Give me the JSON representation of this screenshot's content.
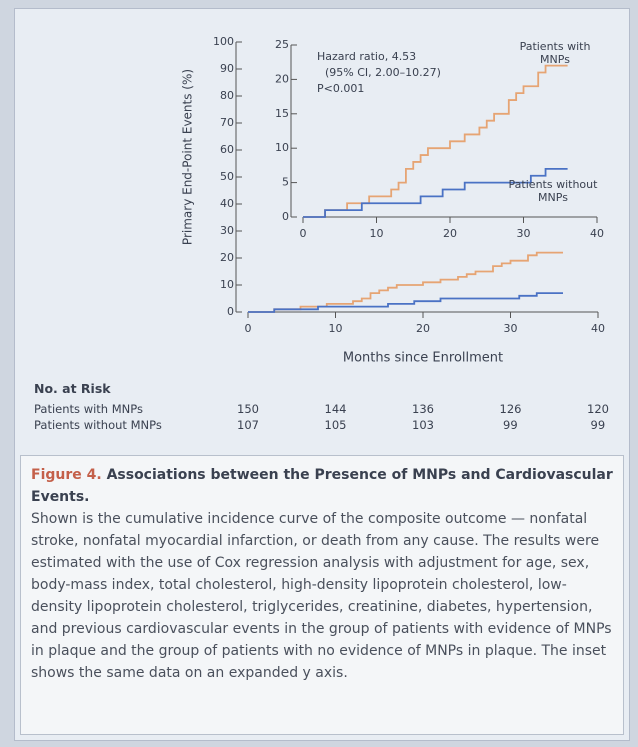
{
  "chart_data": [
    {
      "type": "line",
      "step": true,
      "ylabel": "Primary End-Point Events (%)",
      "xlabel": "Months since Enrollment",
      "xlim": [
        0,
        40
      ],
      "xticks": [
        0,
        10,
        20,
        30,
        40
      ],
      "ylim": [
        0,
        100
      ],
      "yticks": [
        0,
        10,
        20,
        30,
        40,
        50,
        60,
        70,
        80,
        90,
        100
      ],
      "series": [
        {
          "color": "#e6a473",
          "x": [
            0,
            3,
            3,
            6,
            6,
            9,
            9,
            12,
            12,
            13,
            13,
            14,
            14,
            15,
            15,
            16,
            16,
            17,
            17,
            20,
            20,
            22,
            22,
            24,
            24,
            25,
            25,
            26,
            26,
            28,
            28,
            29,
            29,
            30,
            30,
            32,
            32,
            33,
            33,
            36
          ],
          "values": [
            0,
            0,
            1,
            1,
            2,
            2,
            3,
            3,
            4,
            4,
            5,
            5,
            7,
            7,
            8,
            8,
            9,
            9,
            10,
            10,
            11,
            11,
            12,
            12,
            13,
            13,
            14,
            14,
            15,
            15,
            17,
            17,
            18,
            18,
            19,
            19,
            21,
            21,
            22,
            22
          ]
        },
        {
          "color": "#4a72c4",
          "x": [
            0,
            3,
            3,
            8,
            8,
            16,
            16,
            19,
            19,
            22,
            22,
            31,
            31,
            33,
            33,
            36
          ],
          "values": [
            0,
            0,
            1,
            1,
            2,
            2,
            3,
            3,
            4,
            4,
            5,
            5,
            6,
            6,
            7,
            7
          ]
        }
      ]
    },
    {
      "type": "line",
      "step": true,
      "annotation": [
        "Hazard ratio, 4.53",
        "(95% CI, 2.00–10.27)",
        "P<0.001"
      ],
      "xlim": [
        0,
        40
      ],
      "xticks": [
        0,
        10,
        20,
        30,
        40
      ],
      "ylim": [
        0,
        25
      ],
      "yticks": [
        0,
        5,
        10,
        15,
        20,
        25
      ],
      "series": [
        {
          "name": "Patients with MNPs",
          "color": "#e6a473",
          "x": [
            0,
            3,
            3,
            6,
            6,
            9,
            9,
            12,
            12,
            13,
            13,
            14,
            14,
            15,
            15,
            16,
            16,
            17,
            17,
            20,
            20,
            22,
            22,
            24,
            24,
            25,
            25,
            26,
            26,
            28,
            28,
            29,
            29,
            30,
            30,
            32,
            32,
            33,
            33,
            36
          ],
          "values": [
            0,
            0,
            1,
            1,
            2,
            2,
            3,
            3,
            4,
            4,
            5,
            5,
            7,
            7,
            8,
            8,
            9,
            9,
            10,
            10,
            11,
            11,
            12,
            12,
            13,
            13,
            14,
            14,
            15,
            15,
            17,
            17,
            18,
            18,
            19,
            19,
            21,
            21,
            22,
            22
          ]
        },
        {
          "name": "Patients without MNPs",
          "color": "#4a72c4",
          "x": [
            0,
            3,
            3,
            8,
            8,
            16,
            16,
            19,
            19,
            22,
            22,
            31,
            31,
            33,
            33,
            36
          ],
          "values": [
            0,
            0,
            1,
            1,
            2,
            2,
            3,
            3,
            4,
            4,
            5,
            5,
            6,
            6,
            7,
            7
          ]
        }
      ]
    }
  ],
  "risk_table": {
    "title": "No. at Risk",
    "rows": [
      {
        "label": "Patients with MNPs",
        "values": [
          "150",
          "144",
          "136",
          "126",
          "120"
        ]
      },
      {
        "label": "Patients without MNPs",
        "values": [
          "107",
          "105",
          "103",
          "99",
          "99"
        ]
      }
    ]
  },
  "caption": {
    "figure": "Figure 4.",
    "title": "Associations between the Presence of MNPs and Cardiovascular Events.",
    "body": "Shown is the cumulative incidence curve of the composite outcome — nonfatal stroke, nonfatal myocardial infarction, or death from any cause. The results were estimated with the use of Cox regression analysis with adjustment for age, sex, body-mass index, total cholesterol, high-density lipoprotein cholesterol, low-density lipoprotein cholesterol, triglycerides, creatinine, diabetes, hypertension, and previous cardiovascular events in the group of patients with evidence of MNPs in plaque and the group of patients with no evidence of MNPs in plaque. The inset shows the same data on an expanded y axis."
  }
}
